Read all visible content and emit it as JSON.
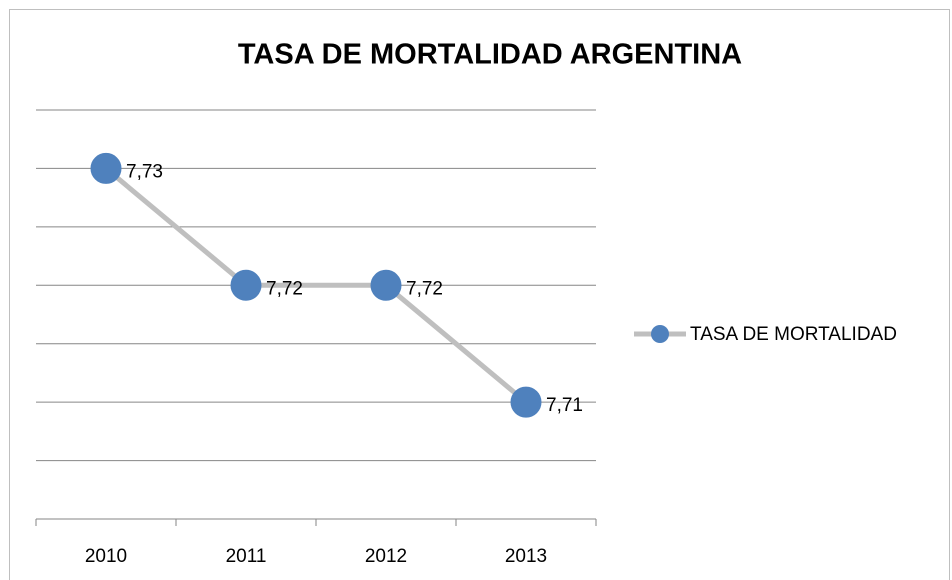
{
  "chart_data": {
    "type": "line",
    "title": "TASA DE MORTALIDAD ARGENTINA",
    "categories": [
      "2010",
      "2011",
      "2012",
      "2013"
    ],
    "series": [
      {
        "name": "TASA DE MORTALIDAD",
        "color": "#bfbfbf",
        "marker_color": "#4f81bd",
        "values": [
          7.73,
          7.72,
          7.72,
          7.71
        ],
        "value_labels": [
          "7,73",
          "7,72",
          "7,72",
          "7,71"
        ]
      }
    ],
    "ylim": [
      7.7,
      7.735
    ],
    "yticks": [
      7.7,
      7.705,
      7.71,
      7.715,
      7.72,
      7.725,
      7.73,
      7.735
    ],
    "ytick_labels": false,
    "grid": true,
    "legend": "right"
  }
}
